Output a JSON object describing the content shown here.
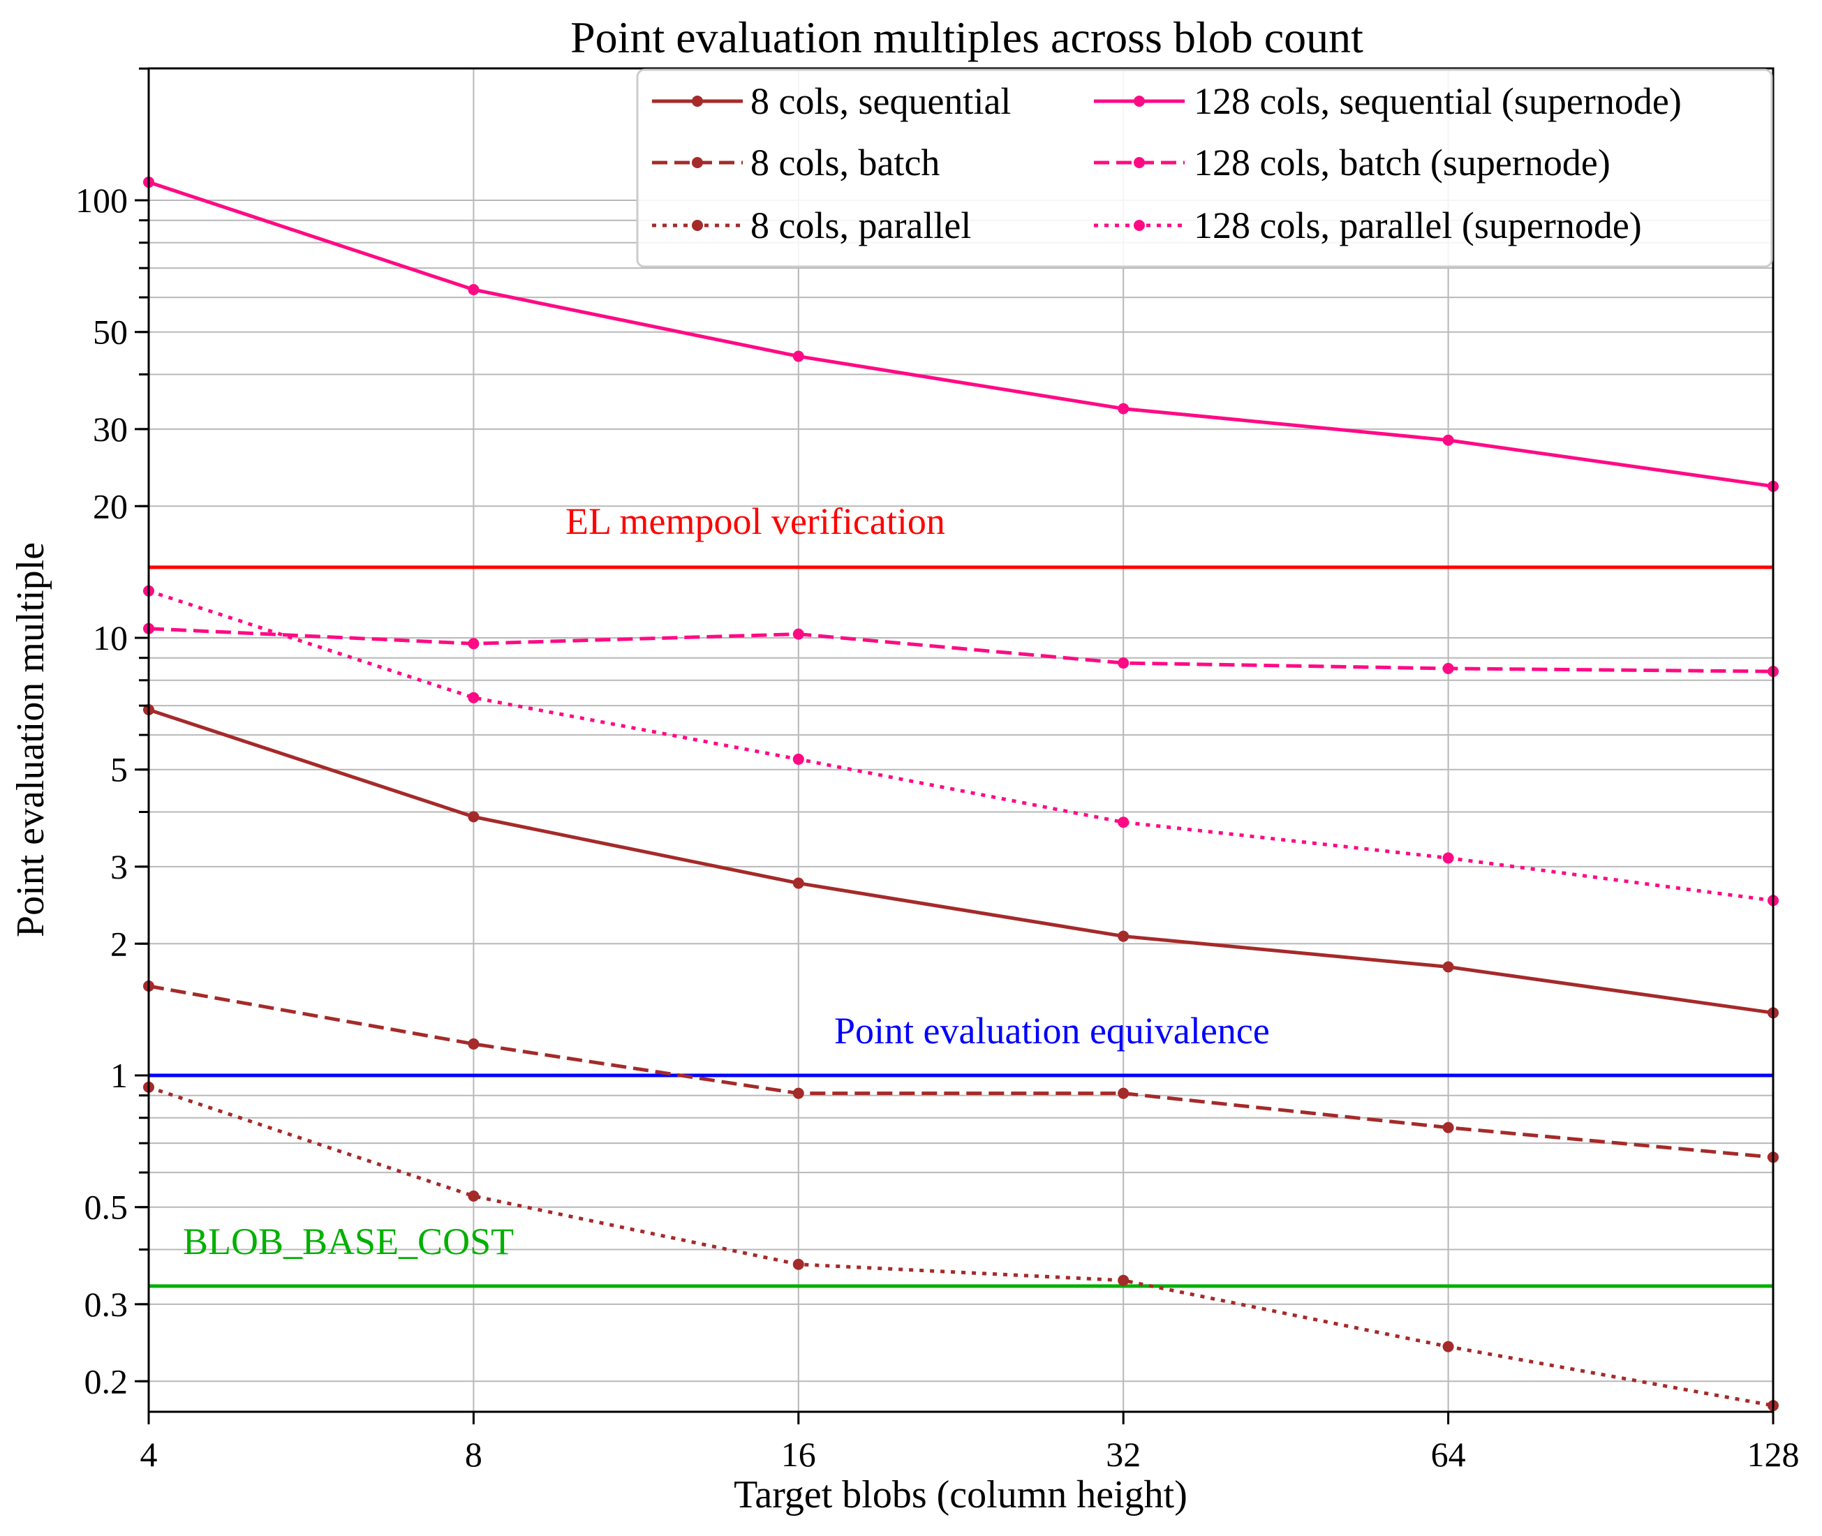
{
  "chart_data": {
    "type": "line",
    "title": "Point evaluation multiples across blob count",
    "xlabel": "Target blobs (column height)",
    "ylabel": "Point evaluation multiple",
    "xscale": "log2",
    "yscale": "log10",
    "x": [
      4,
      8,
      16,
      32,
      64,
      128
    ],
    "x_tick_labels": [
      "4",
      "8",
      "16",
      "32",
      "64",
      "128"
    ],
    "y_tick_values": [
      0.2,
      0.3,
      0.5,
      1,
      2,
      3,
      5,
      10,
      20,
      30,
      50,
      100
    ],
    "y_tick_labels": [
      "0.2",
      "0.3",
      "0.5",
      "1",
      "2",
      "3",
      "5",
      "10",
      "20",
      "30",
      "50",
      "100"
    ],
    "xlim": [
      4,
      128
    ],
    "ylim": [
      0.17,
      200
    ],
    "grid": true,
    "legend_position": "upper right",
    "series": [
      {
        "name": "8 cols, sequential",
        "color": "#a52a2a",
        "linestyle": "solid",
        "values": [
          6.85,
          3.9,
          2.75,
          2.08,
          1.77,
          1.39
        ]
      },
      {
        "name": "8 cols, batch",
        "color": "#a52a2a",
        "linestyle": "dashed",
        "values": [
          1.6,
          1.18,
          0.91,
          0.91,
          0.76,
          0.65
        ]
      },
      {
        "name": "8 cols, parallel",
        "color": "#a52a2a",
        "linestyle": "dotted",
        "values": [
          0.94,
          0.53,
          0.37,
          0.34,
          0.24,
          0.176
        ]
      },
      {
        "name": "128 cols, sequential (supernode)",
        "color": "#ff0a85",
        "linestyle": "solid",
        "values": [
          110,
          62.5,
          44,
          33.4,
          28.3,
          22.2
        ]
      },
      {
        "name": "128 cols, batch (supernode)",
        "color": "#ff0a85",
        "linestyle": "dashed",
        "values": [
          10.5,
          9.7,
          10.2,
          8.76,
          8.51,
          8.38
        ]
      },
      {
        "name": "128 cols, parallel (supernode)",
        "color": "#ff0a85",
        "linestyle": "dotted",
        "values": [
          12.8,
          7.3,
          5.28,
          3.79,
          3.14,
          2.51
        ]
      }
    ],
    "reference_lines": [
      {
        "label": "EL mempool verification",
        "value": 14.5,
        "color": "#ff0000"
      },
      {
        "label": "Point evaluation equivalence",
        "value": 1,
        "color": "#0000ff"
      },
      {
        "label": "BLOB_BASE_COST",
        "value": 0.33,
        "color": "#00b000"
      }
    ]
  }
}
